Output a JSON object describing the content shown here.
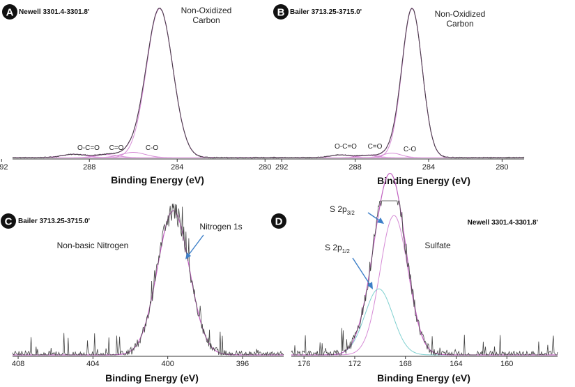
{
  "colors": {
    "spectrum": "#444444",
    "fit": "#c060c0",
    "component": "#d58ad5",
    "component_alt": "#7fd0d0",
    "axis": "#333333",
    "badge": "#111111",
    "arrow": "#3d7fc8"
  },
  "chart_data": [
    {
      "id": "A",
      "type": "line",
      "badge": "A",
      "sample": "Newell 3301.4-3301.8'",
      "xlabel": "Binding Energy (eV)",
      "ylabel": "",
      "x_reversed": true,
      "xlim": [
        291.5,
        279.5
      ],
      "ylim": [
        0,
        1.03
      ],
      "xticks": [
        292,
        288,
        284,
        280
      ],
      "tick_labels": [
        "292",
        "288",
        "284",
        "280"
      ],
      "noise": 0.0,
      "peaks": [
        {
          "name": "Non-Oxidized Carbon",
          "center": 284.8,
          "height": 1.0,
          "width": 0.6
        },
        {
          "name": "C-O",
          "center": 286.0,
          "height": 0.035,
          "width": 0.55
        },
        {
          "name": "C=O",
          "center": 287.2,
          "height": 0.02,
          "width": 0.5
        },
        {
          "name": "O-C=O",
          "center": 288.7,
          "height": 0.022,
          "width": 0.55
        }
      ],
      "annotations": [
        {
          "text": "Non-Oxidized",
          "x": 283.0,
          "y": 0.98
        },
        {
          "text": "Carbon",
          "x": 283.0,
          "y": 0.89
        },
        {
          "text": "O-C=O",
          "x": 289.0,
          "y": 0.07
        },
        {
          "text": "C=O",
          "x": 287.3,
          "y": 0.07
        },
        {
          "text": "C-O",
          "x": 285.7,
          "y": 0.07
        }
      ]
    },
    {
      "id": "B",
      "type": "line",
      "badge": "B",
      "sample": "Bailer 3713.25-3715.0'",
      "xlabel": "Binding Energy (eV)",
      "ylabel": "",
      "x_reversed": true,
      "xlim": [
        292.5,
        278.8
      ],
      "ylim": [
        0,
        1.03
      ],
      "xticks": [
        292,
        288,
        284,
        280
      ],
      "tick_labels": [
        "292",
        "288",
        "284",
        "280"
      ],
      "noise": 0.0,
      "peaks": [
        {
          "name": "Non-Oxidized Carbon",
          "center": 284.9,
          "height": 1.0,
          "width": 0.55
        },
        {
          "name": "C-O",
          "center": 286.0,
          "height": 0.03,
          "width": 0.5
        },
        {
          "name": "C=O",
          "center": 287.3,
          "height": 0.015,
          "width": 0.5
        },
        {
          "name": "O-C=O",
          "center": 288.8,
          "height": 0.018,
          "width": 0.55
        }
      ],
      "annotations": [
        {
          "text": "Non-Oxidized",
          "x": 282.6,
          "y": 0.98
        },
        {
          "text": "Carbon",
          "x": 282.6,
          "y": 0.89
        },
        {
          "text": "O-C=O",
          "x": 288.9,
          "y": 0.07
        },
        {
          "text": "C=O",
          "x": 287.2,
          "y": 0.07
        },
        {
          "text": "C-O",
          "x": 285.9,
          "y": 0.03
        }
      ]
    },
    {
      "id": "C",
      "type": "line",
      "badge": "C",
      "sample": "Bailer 3713.25-3715.0'",
      "xlabel": "Binding Energy (eV)",
      "ylabel": "",
      "x_reversed": true,
      "xlim": [
        408.3,
        393.8
      ],
      "ylim": [
        0,
        1.05
      ],
      "xticks": [
        408,
        404,
        400,
        396
      ],
      "tick_labels": [
        "408",
        "404",
        "400",
        "396"
      ],
      "noise": 0.05,
      "peaks": [
        {
          "name": "Nitrogen 1s",
          "center": 399.7,
          "height": 1.0,
          "width": 0.85
        }
      ],
      "annotations": [
        {
          "text": "Non-basic Nitrogen",
          "x": 404.6,
          "y": 0.74
        },
        {
          "text": "Nitrogen 1s",
          "x": 397.3,
          "y": 0.83
        }
      ]
    },
    {
      "id": "D",
      "type": "line",
      "badge": "D",
      "sample": "Newell 3301.4-3301.8'",
      "xlabel": "Binding Energy (eV)",
      "ylabel": "",
      "x_reversed": true,
      "xlim": [
        177.0,
        156.0
      ],
      "ylim": [
        0,
        1.05
      ],
      "xticks": [
        176,
        172,
        168,
        164,
        160
      ],
      "tick_labels": [
        "176",
        "172",
        "168",
        "164",
        "160"
      ],
      "noise": 0.05,
      "peaks": [
        {
          "name": "S 2p3/2",
          "center": 168.9,
          "height": 0.95,
          "width": 1.1
        },
        {
          "name": "S 2p1/2",
          "center": 170.1,
          "height": 0.45,
          "width": 1.1
        }
      ],
      "annotations": [
        {
          "text": "Sulfate",
          "x": 166.7,
          "y": 0.72
        }
      ],
      "label_s2p32": {
        "main": "S 2p",
        "sub": "3/2"
      },
      "label_s2p12": {
        "main": "S 2p",
        "sub": "1/2"
      }
    }
  ]
}
